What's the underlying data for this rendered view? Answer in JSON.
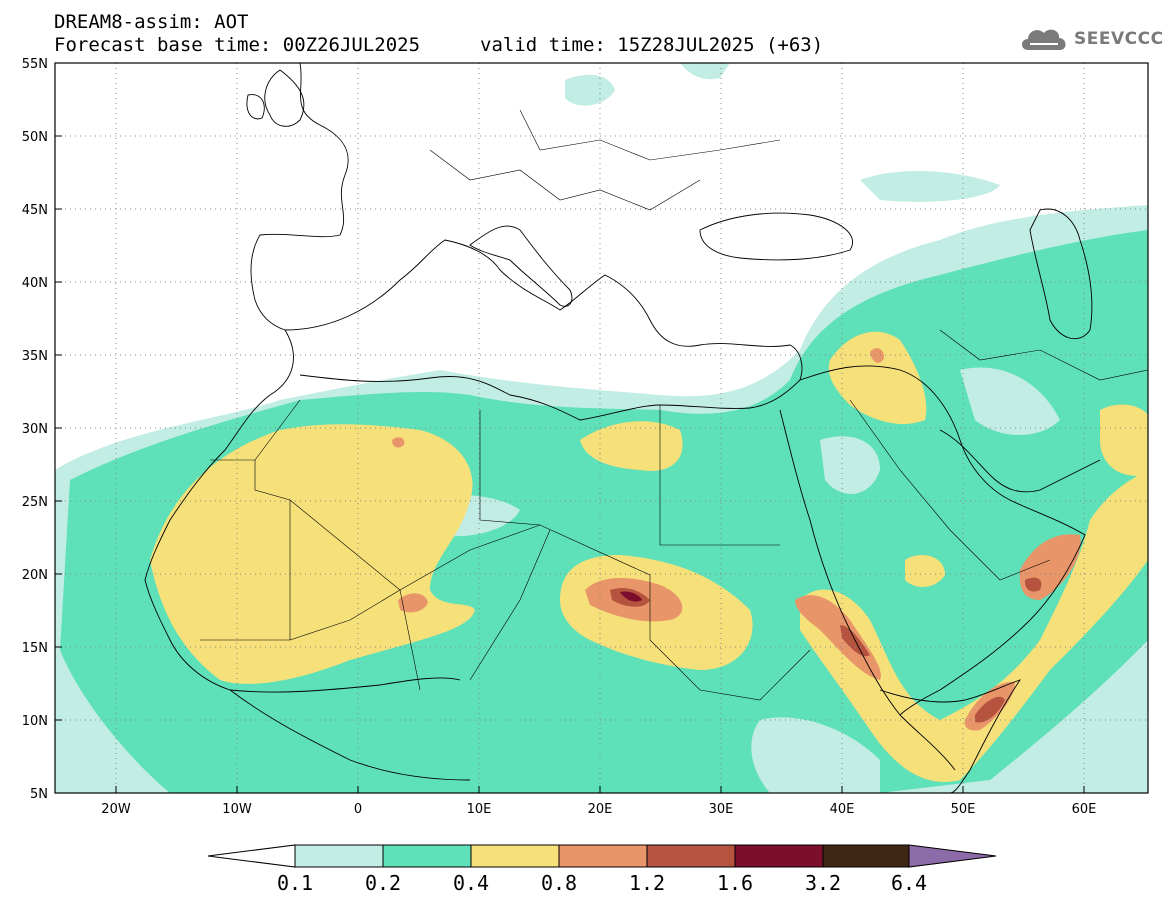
{
  "header": {
    "model_title": "DREAM8-assim: AOT",
    "base_time": "Forecast base time: 00Z26JUL2025",
    "valid_time": "valid time: 15Z28JUL2025 (+63)"
  },
  "logo": {
    "text": "SEEVCCC",
    "icon": "cloud-icon"
  },
  "map": {
    "lon_labels": [
      "20W",
      "10W",
      "0",
      "10E",
      "20E",
      "30E",
      "40E",
      "50E",
      "60E"
    ],
    "lat_labels": [
      "55N",
      "50N",
      "45N",
      "40N",
      "35N",
      "30N",
      "25N",
      "20N",
      "15N",
      "10N",
      "5N"
    ],
    "extent": {
      "lon_min": -25,
      "lon_max": 65,
      "lat_min": 5,
      "lat_max": 55
    },
    "gridlines": "dotted"
  },
  "colorbar": {
    "levels": [
      "0.1",
      "0.2",
      "0.4",
      "0.8",
      "1.2",
      "1.6",
      "3.2",
      "6.4"
    ],
    "colors": [
      "#ffffff",
      "#c2ede4",
      "#5ee0b8",
      "#f6e07a",
      "#e8956a",
      "#b5533f",
      "#7d0d2c",
      "#3f2714",
      "#8d6aa8"
    ]
  }
}
